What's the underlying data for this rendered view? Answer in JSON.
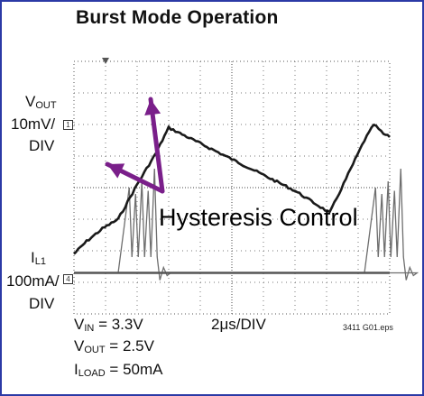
{
  "chart_data": {
    "type": "line",
    "title": "Burst Mode Operation",
    "channel1": {
      "label_main": "V",
      "label_sub": "OUT",
      "scale": "10mV/",
      "div": "DIV",
      "marker": "1"
    },
    "channel2": {
      "label_main": "I",
      "label_sub": "L1",
      "scale": "100mA/",
      "div": "DIV",
      "marker": "4"
    },
    "timebase": "2μs/DIV",
    "conditions": [
      {
        "main": "V",
        "sub": "IN",
        "rest": " = 3.3V"
      },
      {
        "main": "V",
        "sub": "OUT",
        "rest": " = 2.5V"
      },
      {
        "main": "I",
        "sub": "LOAD",
        "rest": " = 50mA"
      }
    ],
    "figure_id": "3411 G01.eps",
    "annotation": "Hysteresis Control",
    "divisions": {
      "x": 10,
      "y": 8
    },
    "vout_trace_divisions": [
      [
        0.0,
        1.9
      ],
      [
        0.4,
        2.3
      ],
      [
        0.9,
        2.7
      ],
      [
        1.4,
        3.0
      ],
      [
        2.0,
        4.1
      ],
      [
        2.6,
        5.1
      ],
      [
        3.0,
        5.9
      ],
      [
        5.0,
        4.9
      ],
      [
        7.0,
        3.9
      ],
      [
        8.1,
        3.2
      ],
      [
        9.2,
        5.5
      ],
      [
        9.5,
        6.0
      ],
      [
        9.8,
        5.7
      ],
      [
        10.0,
        5.6
      ]
    ],
    "il1_bursts_start_div": [
      1.4,
      9.2
    ],
    "annotation_colour": "#7a1f8a",
    "frame_colour": "#2b3aa6"
  }
}
